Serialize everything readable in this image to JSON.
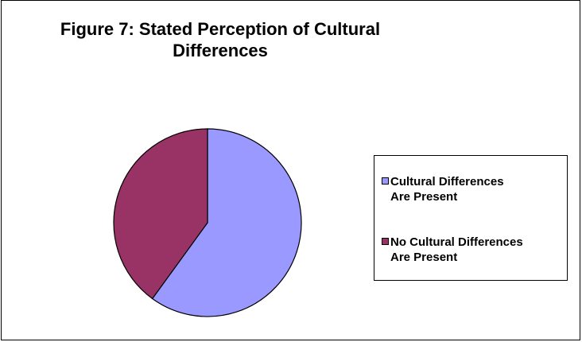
{
  "chart_data": {
    "type": "pie",
    "title": "Figure 7:  Stated Perception of Cultural Differences",
    "title_lines": [
      "Figure 7:  Stated Perception of Cultural",
      "Differences"
    ],
    "slices": [
      {
        "label": "Cultural Differences Are Present",
        "label_lines": [
          "Cultural Differences",
          "Are Present"
        ],
        "value": 60,
        "color": "#9999FF"
      },
      {
        "label": "No Cultural Differences Are Present",
        "label_lines": [
          "No Cultural Differences",
          "Are Present"
        ],
        "value": 40,
        "color": "#993366"
      }
    ],
    "legend_position": "right",
    "start_angle": "top",
    "direction": "clockwise"
  },
  "colors": {
    "outline": "#000000",
    "background": "#FFFFFF"
  }
}
